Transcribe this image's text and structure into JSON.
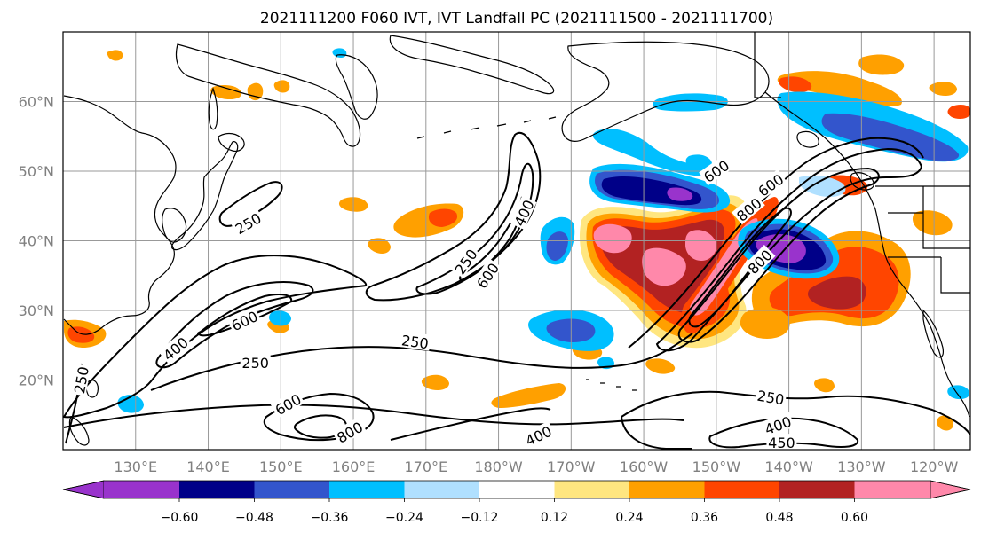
{
  "title": "2021111200 F060 IVT, IVT Landfall PC (2021111500 - 2021111700)",
  "map": {
    "lon_min": 120,
    "lon_max": 245,
    "lat_min": 10,
    "lat_max": 70,
    "lon_ticks": [
      {
        "lon": 130,
        "label": "130°E"
      },
      {
        "lon": 140,
        "label": "140°E"
      },
      {
        "lon": 150,
        "label": "150°E"
      },
      {
        "lon": 160,
        "label": "160°E"
      },
      {
        "lon": 170,
        "label": "170°E"
      },
      {
        "lon": 180,
        "label": "180°W"
      },
      {
        "lon": 190,
        "label": "170°W"
      },
      {
        "lon": 200,
        "label": "160°W"
      },
      {
        "lon": 210,
        "label": "150°W"
      },
      {
        "lon": 220,
        "label": "140°W"
      },
      {
        "lon": 230,
        "label": "130°W"
      },
      {
        "lon": 240,
        "label": "120°W"
      }
    ],
    "lat_ticks": [
      {
        "lat": 20,
        "label": "20°N"
      },
      {
        "lat": 30,
        "label": "30°N"
      },
      {
        "lat": 40,
        "label": "40°N"
      },
      {
        "lat": 50,
        "label": "50°N"
      },
      {
        "lat": 60,
        "label": "60°N"
      }
    ],
    "contour_labels": [
      {
        "text": "250",
        "lon": 145.5,
        "lat": 42.5,
        "angle": -30
      },
      {
        "text": "250",
        "lon": 175.5,
        "lat": 37.0,
        "angle": -55
      },
      {
        "text": "600",
        "lon": 178.5,
        "lat": 35.0,
        "angle": -55
      },
      {
        "text": "400",
        "lon": 183.5,
        "lat": 44.0,
        "angle": -65
      },
      {
        "text": "600",
        "lon": 145.0,
        "lat": 28.5,
        "angle": -25
      },
      {
        "text": "400",
        "lon": 135.5,
        "lat": 24.5,
        "angle": -40
      },
      {
        "text": "250",
        "lon": 168.5,
        "lat": 25.5,
        "angle": 8
      },
      {
        "text": "250",
        "lon": 146.5,
        "lat": 22.5,
        "angle": 0
      },
      {
        "text": "250",
        "lon": 122.5,
        "lat": 20.0,
        "angle": -80
      },
      {
        "text": "600",
        "lon": 151.0,
        "lat": 16.5,
        "angle": -30
      },
      {
        "text": "800",
        "lon": 159.5,
        "lat": 12.5,
        "angle": -30
      },
      {
        "text": "400",
        "lon": 185.5,
        "lat": 12.0,
        "angle": -25
      },
      {
        "text": "600",
        "lon": 210.0,
        "lat": 50.0,
        "angle": -35
      },
      {
        "text": "800",
        "lon": 214.5,
        "lat": 44.5,
        "angle": -40
      },
      {
        "text": "600",
        "lon": 217.5,
        "lat": 48.0,
        "angle": -35
      },
      {
        "text": "800",
        "lon": 216.0,
        "lat": 37.0,
        "angle": -45
      },
      {
        "text": "250",
        "lon": 217.5,
        "lat": 17.5,
        "angle": 10
      },
      {
        "text": "400",
        "lon": 218.5,
        "lat": 13.5,
        "angle": -20
      },
      {
        "text": "450",
        "lon": 219.0,
        "lat": 11.0,
        "angle": 0
      }
    ]
  },
  "colorbar": {
    "colors": [
      "#9933CC",
      "#000088",
      "#3355CC",
      "#00BFFF",
      "#B0E0FF",
      "#FFFFFF",
      "#FFE680",
      "#FFA000",
      "#FF4500",
      "#B22222",
      "#FF88AA"
    ],
    "labels": [
      "−0.60",
      "−0.48",
      "−0.36",
      "−0.24",
      "−0.12",
      "0.12",
      "0.24",
      "0.36",
      "0.48",
      "0.60"
    ],
    "boundaries": [
      -0.6,
      -0.48,
      -0.36,
      -0.24,
      -0.12,
      0.12,
      0.24,
      0.36,
      0.48,
      0.6
    ]
  },
  "fill_colors": {
    "yellow": "#FFE680",
    "orange": "#FFA000",
    "redorange": "#FF4500",
    "darkred": "#B22222",
    "pink": "#FF88AA",
    "lightblue": "#B0E0FF",
    "cyan": "#00BFFF",
    "blue": "#3355CC",
    "navy": "#000088",
    "purple": "#9933CC"
  }
}
